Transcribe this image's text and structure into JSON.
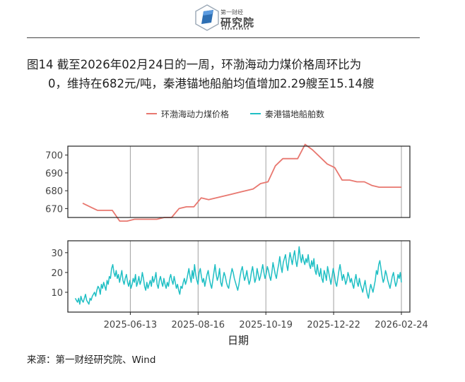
{
  "header": {
    "logo_small_text": "第一财经",
    "logo_big_text": "研究院"
  },
  "caption": {
    "line1": "图14  截至2026年02月24日的一周，环渤海动力煤价格周环比为",
    "line2": "0，维持在682元/吨，秦港锚地船舶均值增加2.29艘至15.14艘"
  },
  "source": "来源：第一财经研究院、Wind",
  "chart_data": {
    "type": "line",
    "legend": {
      "placement": "top",
      "entries": [
        "环渤海动力煤价格",
        "秦港锚地船舶数"
      ]
    },
    "xlabel": "日期",
    "x_ticks": [
      "2025-06-13",
      "2025-08-16",
      "2025-10-19",
      "2025-12-22",
      "2026-02-24"
    ],
    "x_range": [
      "2025-04-15",
      "2026-03-04"
    ],
    "colors": {
      "price": "#e8776f",
      "ships": "#1fbfc4",
      "grid": "#a0a0a0",
      "axis": "#222222"
    },
    "panels": [
      {
        "name": "环渤海动力煤价格",
        "ylim": [
          665,
          705
        ],
        "y_ticks": [
          670,
          680,
          690,
          700
        ],
        "series": {
          "name": "环渤海动力煤价格",
          "x": [
            "2025-04-29",
            "2025-05-06",
            "2025-05-13",
            "2025-05-20",
            "2025-05-27",
            "2025-06-03",
            "2025-06-10",
            "2025-06-17",
            "2025-06-24",
            "2025-07-01",
            "2025-07-08",
            "2025-07-15",
            "2025-07-22",
            "2025-07-29",
            "2025-08-05",
            "2025-08-12",
            "2025-08-19",
            "2025-08-26",
            "2025-09-02",
            "2025-09-09",
            "2025-09-16",
            "2025-09-23",
            "2025-09-30",
            "2025-10-07",
            "2025-10-14",
            "2025-10-21",
            "2025-10-28",
            "2025-11-04",
            "2025-11-11",
            "2025-11-18",
            "2025-11-25",
            "2025-12-02",
            "2025-12-09",
            "2025-12-16",
            "2025-12-23",
            "2025-12-30",
            "2026-01-06",
            "2026-01-13",
            "2026-01-20",
            "2026-01-27",
            "2026-02-03",
            "2026-02-10",
            "2026-02-17",
            "2026-02-24"
          ],
          "y": [
            673,
            671,
            669,
            669,
            669,
            663,
            663,
            664,
            664,
            664,
            664,
            665,
            665,
            670,
            671,
            671,
            676,
            675,
            676,
            677,
            678,
            679,
            680,
            681,
            684,
            685,
            694,
            698,
            698,
            698,
            706,
            703,
            699,
            695,
            693,
            686,
            686,
            685,
            685,
            683,
            682,
            682,
            682,
            682
          ]
        }
      },
      {
        "name": "秦港锚地船舶数",
        "ylim": [
          0,
          36
        ],
        "y_ticks": [
          10,
          20,
          30
        ],
        "series": {
          "name": "秦港锚地船舶数",
          "x_start": "2025-04-22",
          "x_end": "2026-02-24",
          "y": [
            7,
            6,
            5,
            7,
            4,
            8,
            6,
            5,
            7,
            9,
            6,
            5,
            4,
            7,
            6,
            8,
            9,
            10,
            8,
            11,
            13,
            12,
            9,
            14,
            12,
            15,
            13,
            11,
            16,
            14,
            18,
            17,
            22,
            24,
            20,
            18,
            21,
            17,
            19,
            15,
            18,
            21,
            16,
            14,
            17,
            19,
            15,
            13,
            16,
            12,
            14,
            17,
            15,
            19,
            13,
            15,
            18,
            14,
            16,
            20,
            17,
            13,
            11,
            15,
            12,
            14,
            16,
            13,
            18,
            15,
            17,
            20,
            14,
            12,
            16,
            18,
            15,
            13,
            17,
            14,
            12,
            15,
            13,
            17,
            19,
            16,
            14,
            18,
            15,
            12,
            14,
            11,
            9,
            13,
            12,
            15,
            17,
            14,
            16,
            19,
            22,
            18,
            15,
            21,
            17,
            24,
            19,
            16,
            14,
            20,
            22,
            18,
            15,
            17,
            13,
            16,
            19,
            21,
            17,
            14,
            12,
            16,
            20,
            24,
            19,
            16,
            18,
            22,
            15,
            13,
            17,
            20,
            18,
            15,
            13,
            12,
            16,
            19,
            22,
            20,
            17,
            15,
            13,
            11,
            14,
            18,
            21,
            23,
            19,
            16,
            18,
            21,
            17,
            14,
            16,
            20,
            23,
            19,
            15,
            17,
            22,
            19,
            16,
            18,
            21,
            24,
            20,
            17,
            19,
            23,
            21,
            18,
            16,
            20,
            25,
            22,
            19,
            17,
            21,
            24,
            28,
            23,
            20,
            25,
            27,
            29,
            24,
            21,
            26,
            30,
            27,
            24,
            28,
            31,
            26,
            23,
            27,
            33,
            28,
            25,
            29,
            26,
            24,
            27,
            25,
            29,
            24,
            22,
            26,
            23,
            27,
            21,
            19,
            24,
            20,
            18,
            22,
            17,
            15,
            21,
            19,
            16,
            23,
            20,
            17,
            14,
            18,
            22,
            19,
            15,
            13,
            17,
            21,
            24,
            20,
            16,
            19,
            17,
            14,
            16,
            20,
            18,
            15,
            17,
            14,
            12,
            16,
            19,
            15,
            13,
            17,
            14,
            12,
            10,
            13,
            16,
            12,
            9,
            7,
            11,
            14,
            12,
            10,
            13,
            16,
            21,
            19,
            24,
            26,
            22,
            18,
            15,
            17,
            21,
            19,
            16,
            14,
            12,
            15,
            18,
            20,
            16,
            13,
            15,
            19,
            17,
            20,
            15
          ]
        }
      }
    ]
  }
}
